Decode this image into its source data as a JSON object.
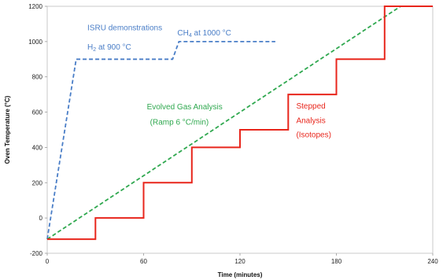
{
  "chart_data": {
    "type": "line",
    "title": "",
    "xlabel": "Time (minutes)",
    "ylabel": "Oven Temperature (°C)",
    "xlim": [
      0,
      240
    ],
    "ylim": [
      -200,
      1200
    ],
    "x_ticks": [
      "0",
      "60",
      "120",
      "180",
      "240"
    ],
    "y_ticks": [
      "-200",
      "0",
      "200",
      "400",
      "600",
      "800",
      "1000",
      "1200"
    ],
    "grid": false,
    "legend": "none",
    "series": [
      {
        "color": "#4a7ec7",
        "style": "dashed",
        "points": [
          [
            0,
            -120
          ],
          [
            18,
            900
          ],
          [
            78,
            900
          ],
          [
            82,
            1000
          ],
          [
            142,
            1000
          ]
        ]
      },
      {
        "color": "#2fa84f",
        "style": "dashed",
        "points": [
          [
            0,
            -120
          ],
          [
            220,
            1200
          ]
        ]
      },
      {
        "color": "#e8261c",
        "style": "solid",
        "points": [
          [
            0,
            -120
          ],
          [
            30,
            -120
          ],
          [
            30,
            0
          ],
          [
            60,
            0
          ],
          [
            60,
            200
          ],
          [
            90,
            200
          ],
          [
            90,
            400
          ],
          [
            120,
            400
          ],
          [
            120,
            500
          ],
          [
            150,
            500
          ],
          [
            150,
            700
          ],
          [
            180,
            700
          ],
          [
            180,
            900
          ],
          [
            210,
            900
          ],
          [
            210,
            1200
          ],
          [
            240,
            1200
          ]
        ]
      }
    ],
    "annotations": [
      {
        "id": "isru",
        "text": "ISRU demonstrations",
        "color": "#4a7ec7",
        "x": 25,
        "y": 1065
      },
      {
        "id": "h2",
        "main": "H",
        "sub": "2",
        "rest": " at 900 °C",
        "color": "#4a7ec7",
        "x": 25,
        "y": 955
      },
      {
        "id": "ch4",
        "main": "CH",
        "sub": "4",
        "rest": " at 1000 °C",
        "color": "#4a7ec7",
        "x": 81,
        "y": 1035
      },
      {
        "id": "ega1",
        "text": "Evolved Gas Analysis",
        "color": "#2fa84f",
        "x": 62,
        "y": 615
      },
      {
        "id": "ega2",
        "text": "(Ramp 6 °C/min)",
        "color": "#2fa84f",
        "x": 64,
        "y": 530
      },
      {
        "id": "step1",
        "text": "Stepped",
        "color": "#e8261c",
        "x": 155,
        "y": 620
      },
      {
        "id": "step2",
        "text": "Analysis",
        "color": "#e8261c",
        "x": 155,
        "y": 538
      },
      {
        "id": "step3",
        "text": "(Isotopes)",
        "color": "#e8261c",
        "x": 155,
        "y": 458
      }
    ]
  }
}
